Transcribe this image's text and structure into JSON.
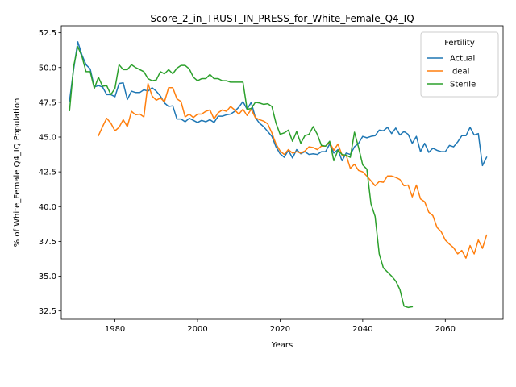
{
  "chart_data": {
    "type": "line",
    "title": "Score_2_in_TRUST_IN_PRESS_for_White_Female_Q4_IQ",
    "xlabel": "Years",
    "ylabel": "% of White_Female Q4_IQ Population",
    "xlim": [
      1967,
      2074
    ],
    "ylim": [
      31.9,
      53.0
    ],
    "xticks": [
      1980,
      2000,
      2020,
      2040,
      2060
    ],
    "yticks": [
      32.5,
      35.0,
      37.5,
      40.0,
      42.5,
      45.0,
      47.5,
      50.0,
      52.5
    ],
    "ytick_labels": [
      "32.5",
      "35.0",
      "37.5",
      "40.0",
      "42.5",
      "45.0",
      "47.5",
      "50.0",
      "52.5"
    ],
    "grid": false,
    "legend": {
      "title": "Fertility",
      "placement": "top-right"
    },
    "series": [
      {
        "name": "Actual",
        "color": "#1f77b4",
        "x": [
          1969,
          1970,
          1971,
          1972,
          1973,
          1974,
          1975,
          1976,
          1977,
          1978,
          1979,
          1980,
          1981,
          1982,
          1983,
          1984,
          1985,
          1986,
          1987,
          1988,
          1989,
          1990,
          1991,
          1992,
          1993,
          1994,
          1995,
          1996,
          1997,
          1998,
          1999,
          2000,
          2001,
          2002,
          2003,
          2004,
          2005,
          2006,
          2007,
          2008,
          2009,
          2010,
          2011,
          2012,
          2013,
          2014,
          2015,
          2016,
          2017,
          2018,
          2019,
          2020,
          2021,
          2022,
          2023,
          2024,
          2025,
          2026,
          2027,
          2028,
          2029,
          2030,
          2031,
          2032,
          2033,
          2034,
          2035,
          2036,
          2037,
          2038,
          2039,
          2040,
          2041,
          2042,
          2043,
          2044,
          2045,
          2046,
          2047,
          2048,
          2049,
          2050,
          2051,
          2052,
          2053,
          2054,
          2055,
          2056,
          2057,
          2058,
          2059,
          2060,
          2061,
          2062,
          2063,
          2064,
          2065,
          2066,
          2067,
          2068,
          2069,
          2070
        ],
        "y": [
          47.6,
          49.9,
          51.85,
          50.9,
          50.2,
          49.9,
          48.6,
          48.7,
          48.6,
          48.05,
          48.05,
          47.9,
          48.85,
          48.9,
          47.7,
          48.3,
          48.2,
          48.2,
          48.4,
          48.3,
          48.55,
          48.3,
          47.95,
          47.45,
          47.2,
          47.25,
          46.3,
          46.3,
          46.1,
          46.35,
          46.2,
          46.05,
          46.2,
          46.1,
          46.25,
          46.05,
          46.5,
          46.5,
          46.6,
          46.65,
          46.85,
          47.15,
          47.55,
          47.0,
          47.5,
          46.4,
          46.0,
          45.75,
          45.4,
          45.05,
          44.3,
          43.8,
          43.55,
          44.05,
          43.5,
          44.1,
          43.8,
          43.95,
          43.75,
          43.8,
          43.75,
          43.95,
          43.95,
          44.5,
          43.85,
          44.1,
          43.3,
          43.85,
          43.75,
          44.3,
          44.55,
          45.05,
          44.95,
          45.05,
          45.1,
          45.5,
          45.45,
          45.7,
          45.25,
          45.65,
          45.15,
          45.4,
          45.2,
          44.55,
          45.05,
          43.95,
          44.55,
          43.9,
          44.2,
          44.05,
          43.95,
          43.95,
          44.4,
          44.3,
          44.65,
          45.1,
          45.1,
          45.7,
          45.15,
          45.25,
          42.95,
          43.55
        ]
      },
      {
        "name": "Ideal",
        "color": "#ff7f0e",
        "x": [
          1976,
          1977,
          1978,
          1979,
          1980,
          1981,
          1982,
          1983,
          1984,
          1985,
          1986,
          1987,
          1988,
          1989,
          1990,
          1991,
          1992,
          1993,
          1994,
          1995,
          1996,
          1997,
          1998,
          1999,
          2000,
          2001,
          2002,
          2003,
          2004,
          2005,
          2006,
          2007,
          2008,
          2009,
          2010,
          2011,
          2012,
          2013,
          2014,
          2015,
          2016,
          2017,
          2018,
          2019,
          2020,
          2021,
          2022,
          2023,
          2024,
          2025,
          2026,
          2027,
          2028,
          2029,
          2030,
          2031,
          2032,
          2033,
          2034,
          2035,
          2036,
          2037,
          2038,
          2039,
          2040,
          2041,
          2042,
          2043,
          2044,
          2045,
          2046,
          2047,
          2048,
          2049,
          2050,
          2051,
          2052,
          2053,
          2054,
          2055,
          2056,
          2057,
          2058,
          2059,
          2060,
          2061,
          2062,
          2063,
          2064,
          2065,
          2066,
          2067,
          2068,
          2069,
          2070
        ],
        "y": [
          45.1,
          45.75,
          46.35,
          46.0,
          45.45,
          45.7,
          46.25,
          45.75,
          46.85,
          46.6,
          46.65,
          46.45,
          48.85,
          47.95,
          47.65,
          47.8,
          47.55,
          48.55,
          48.55,
          47.75,
          47.55,
          46.45,
          46.65,
          46.4,
          46.65,
          46.65,
          46.85,
          46.95,
          46.3,
          46.75,
          46.95,
          46.85,
          47.2,
          46.95,
          46.65,
          47.0,
          46.55,
          47.0,
          46.4,
          46.25,
          46.15,
          45.95,
          45.3,
          44.5,
          44.0,
          43.75,
          44.1,
          43.85,
          43.95,
          43.85,
          44.0,
          44.3,
          44.25,
          44.1,
          44.35,
          44.35,
          44.6,
          44.05,
          44.5,
          43.7,
          43.7,
          42.75,
          43.05,
          42.6,
          42.5,
          42.2,
          41.85,
          41.5,
          41.8,
          41.75,
          42.2,
          42.2,
          42.1,
          41.95,
          41.5,
          41.55,
          40.7,
          41.55,
          40.55,
          40.35,
          39.6,
          39.35,
          38.5,
          38.2,
          37.6,
          37.3,
          37.05,
          36.6,
          36.85,
          36.3,
          37.2,
          36.6,
          37.6,
          37.0,
          37.95
        ]
      },
      {
        "name": "Sterile",
        "color": "#2ca02c",
        "x": [
          1969,
          1970,
          1971,
          1972,
          1973,
          1974,
          1975,
          1976,
          1977,
          1978,
          1979,
          1980,
          1981,
          1982,
          1983,
          1984,
          1985,
          1986,
          1987,
          1988,
          1989,
          1990,
          1991,
          1992,
          1993,
          1994,
          1995,
          1996,
          1997,
          1998,
          1999,
          2000,
          2001,
          2002,
          2003,
          2004,
          2005,
          2006,
          2007,
          2008,
          2009,
          2010,
          2011,
          2012,
          2013,
          2014,
          2015,
          2016,
          2017,
          2018,
          2019,
          2020,
          2021,
          2022,
          2023,
          2024,
          2025,
          2026,
          2027,
          2028,
          2029,
          2030,
          2031,
          2032,
          2033,
          2034,
          2035,
          2036,
          2037,
          2038,
          2039,
          2040,
          2041,
          2042,
          2043,
          2044,
          2045,
          2046,
          2047,
          2048,
          2049,
          2050,
          2051,
          2052
        ],
        "y": [
          46.9,
          50.1,
          51.5,
          50.8,
          49.7,
          49.7,
          48.5,
          49.3,
          48.65,
          48.7,
          48.05,
          48.5,
          50.2,
          49.85,
          49.85,
          50.2,
          50.0,
          49.85,
          49.7,
          49.2,
          49.05,
          49.1,
          49.7,
          49.55,
          49.85,
          49.55,
          49.95,
          50.15,
          50.15,
          49.9,
          49.3,
          49.05,
          49.2,
          49.2,
          49.5,
          49.2,
          49.2,
          49.05,
          49.05,
          48.95,
          48.95,
          48.95,
          48.95,
          47.0,
          47.05,
          47.5,
          47.45,
          47.35,
          47.4,
          47.2,
          46.0,
          45.2,
          45.3,
          45.5,
          44.7,
          45.4,
          44.55,
          45.1,
          45.2,
          45.75,
          45.2,
          44.4,
          44.35,
          44.7,
          43.3,
          44.05,
          43.75,
          43.7,
          43.55,
          45.35,
          44.25,
          43.0,
          42.7,
          40.2,
          39.3,
          36.6,
          35.6,
          35.3,
          35.0,
          34.65,
          34.05,
          32.85,
          32.75,
          32.8
        ]
      }
    ]
  }
}
